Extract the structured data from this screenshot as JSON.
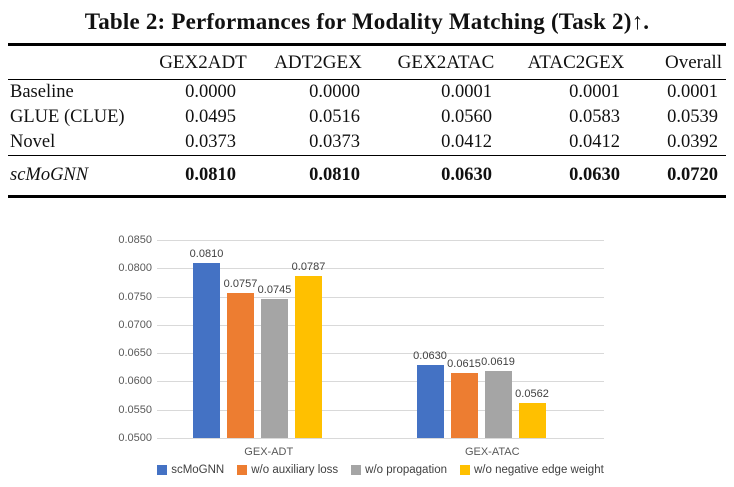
{
  "table": {
    "title": "Table 2: Performances for Modality Matching (Task 2)↑.",
    "columns": [
      "GEX2ADT",
      "ADT2GEX",
      "GEX2ATAC",
      "ATAC2GEX",
      "Overall"
    ],
    "rows": [
      {
        "label": "Baseline",
        "highlight": false,
        "values": [
          "0.0000",
          "0.0000",
          "0.0001",
          "0.0001",
          "0.0001"
        ]
      },
      {
        "label": "GLUE (CLUE)",
        "highlight": false,
        "values": [
          "0.0495",
          "0.0516",
          "0.0560",
          "0.0583",
          "0.0539"
        ]
      },
      {
        "label": "Novel",
        "highlight": false,
        "values": [
          "0.0373",
          "0.0373",
          "0.0412",
          "0.0412",
          "0.0392"
        ]
      },
      {
        "label": "scMoGNN",
        "highlight": true,
        "values": [
          "0.0810",
          "0.0810",
          "0.0630",
          "0.0630",
          "0.0720"
        ]
      }
    ]
  },
  "chart_data": {
    "type": "bar",
    "categories": [
      "GEX-ADT",
      "GEX-ATAC"
    ],
    "series": [
      {
        "name": "scMoGNN",
        "color": "#4472C4",
        "values": [
          0.081,
          0.063
        ]
      },
      {
        "name": "w/o auxiliary loss",
        "color": "#ED7D31",
        "values": [
          0.0757,
          0.0615
        ]
      },
      {
        "name": "w/o propagation",
        "color": "#A5A5A5",
        "values": [
          0.0745,
          0.0619
        ]
      },
      {
        "name": "w/o negative edge weight",
        "color": "#FFC000",
        "values": [
          0.0787,
          0.0562
        ]
      }
    ],
    "ylim": [
      0.05,
      0.085
    ],
    "yticks": [
      "0.0850",
      "0.0800",
      "0.0750",
      "0.0700",
      "0.0650",
      "0.0600",
      "0.0550",
      "0.0500"
    ],
    "grid": true,
    "legend_position": "bottom",
    "gridline_color": "#d9d9d9",
    "tick_label_color": "#595959",
    "data_label_color": "#404040"
  }
}
